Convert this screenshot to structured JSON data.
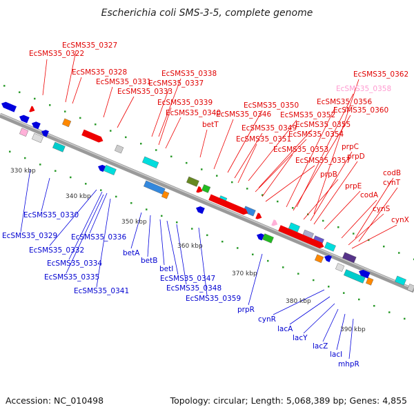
{
  "title": "Escherichia coli SMS-3-5, complete genome",
  "footer": {
    "accession": "Accession: NC_010498",
    "summary": "Topology: circular; Length: 5,068,389 bp; Genes: 4,855"
  },
  "ticks": [
    "330 kbp",
    "340 kbp",
    "350 kbp",
    "360 kbp",
    "370 kbp",
    "380 kbp",
    "390 kbp"
  ],
  "labels_top": [
    "EcSMS35_0327",
    "EcSMS35_0322",
    "EcSMS35_0328",
    "EcSMS35_0331",
    "EcSMS35_0333",
    "EcSMS35_0338",
    "EcSMS35_0337",
    "EcSMS35_0339",
    "EcSMS35_0340",
    "betT",
    "EcSMS35_0346",
    "EcSMS35_0350",
    "EcSMS35_0349",
    "EcSMS35_0352",
    "EcSMS35_0351",
    "EcSMS35_0355",
    "EcSMS35_0354",
    "EcSMS35_0353",
    "EcSMS35_0357",
    "EcSMS35_0362",
    "EcSMS35_0358",
    "EcSMS35_0356",
    "EcSMS35_0360",
    "prpC",
    "prpD",
    "prpB",
    "prpE",
    "codB",
    "codA",
    "cynT",
    "cynS",
    "cynX"
  ],
  "labels_bottom": [
    "EcSMS35_0330",
    "EcSMS35_0329",
    "EcSMS35_0332",
    "EcSMS35_0336",
    "EcSMS35_0334",
    "EcSMS35_0335",
    "EcSMS35_0341",
    "betA",
    "betB",
    "betI",
    "EcSMS35_0347",
    "EcSMS35_0348",
    "EcSMS35_0359",
    "prpR",
    "cynR",
    "lacA",
    "lacY",
    "lacZ",
    "lacI",
    "mhpR"
  ],
  "colors": {
    "forward": "#ee0000",
    "reverse": "#0000dd",
    "backbone": "#8c8c8c",
    "pseudo": "#ffb0d8"
  }
}
